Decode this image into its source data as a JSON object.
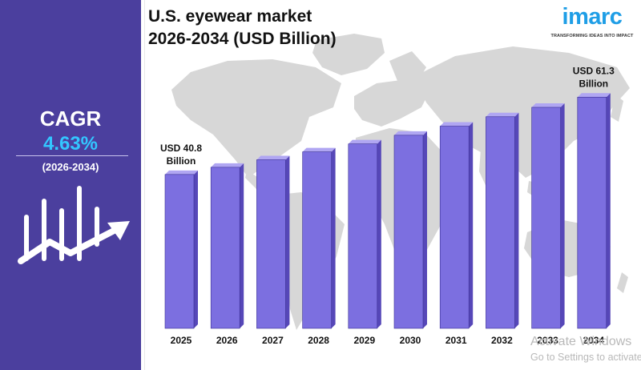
{
  "title_line1": "U.S. eyewear market",
  "title_line2": "2026-2034 (USD Billion)",
  "logo": {
    "word": "imarc",
    "tagline": "TRANSFORMING IDEAS INTO IMPACT"
  },
  "cagr": {
    "label": "CAGR",
    "value": "4.63%",
    "period": "(2026-2034)"
  },
  "icons": {
    "growth": "bar-chart-growth-arrow-icon",
    "map": "world-map-icon"
  },
  "colors": {
    "panel": "#4b3f9e",
    "cagr_value": "#33c6ff",
    "bar_front": "#7c6fe0",
    "bar_side": "#5647b8",
    "bar_top": "#b0a6f2",
    "map": "#d7d7d7",
    "logo": "#1f9ee6"
  },
  "watermark": {
    "line1": "Activate Windows",
    "line2": "Go to Settings to activate Windows."
  },
  "chart_data": {
    "type": "bar",
    "categories": [
      "2025",
      "2026",
      "2027",
      "2028",
      "2029",
      "2030",
      "2031",
      "2032",
      "2033",
      "2034"
    ],
    "values": [
      40.8,
      42.7,
      44.7,
      46.8,
      48.9,
      51.2,
      53.6,
      56.1,
      58.6,
      61.3
    ],
    "title": "U.S. eyewear market 2026-2034 (USD Billion)",
    "xlabel": "",
    "ylabel": "",
    "ylim": [
      0,
      64
    ],
    "grid": false,
    "legend": "none",
    "annotations": [
      {
        "category": "2025",
        "lines": [
          "USD 40.8",
          "Billion"
        ]
      },
      {
        "category": "2034",
        "lines": [
          "USD 61.3",
          "Billion"
        ]
      }
    ]
  }
}
